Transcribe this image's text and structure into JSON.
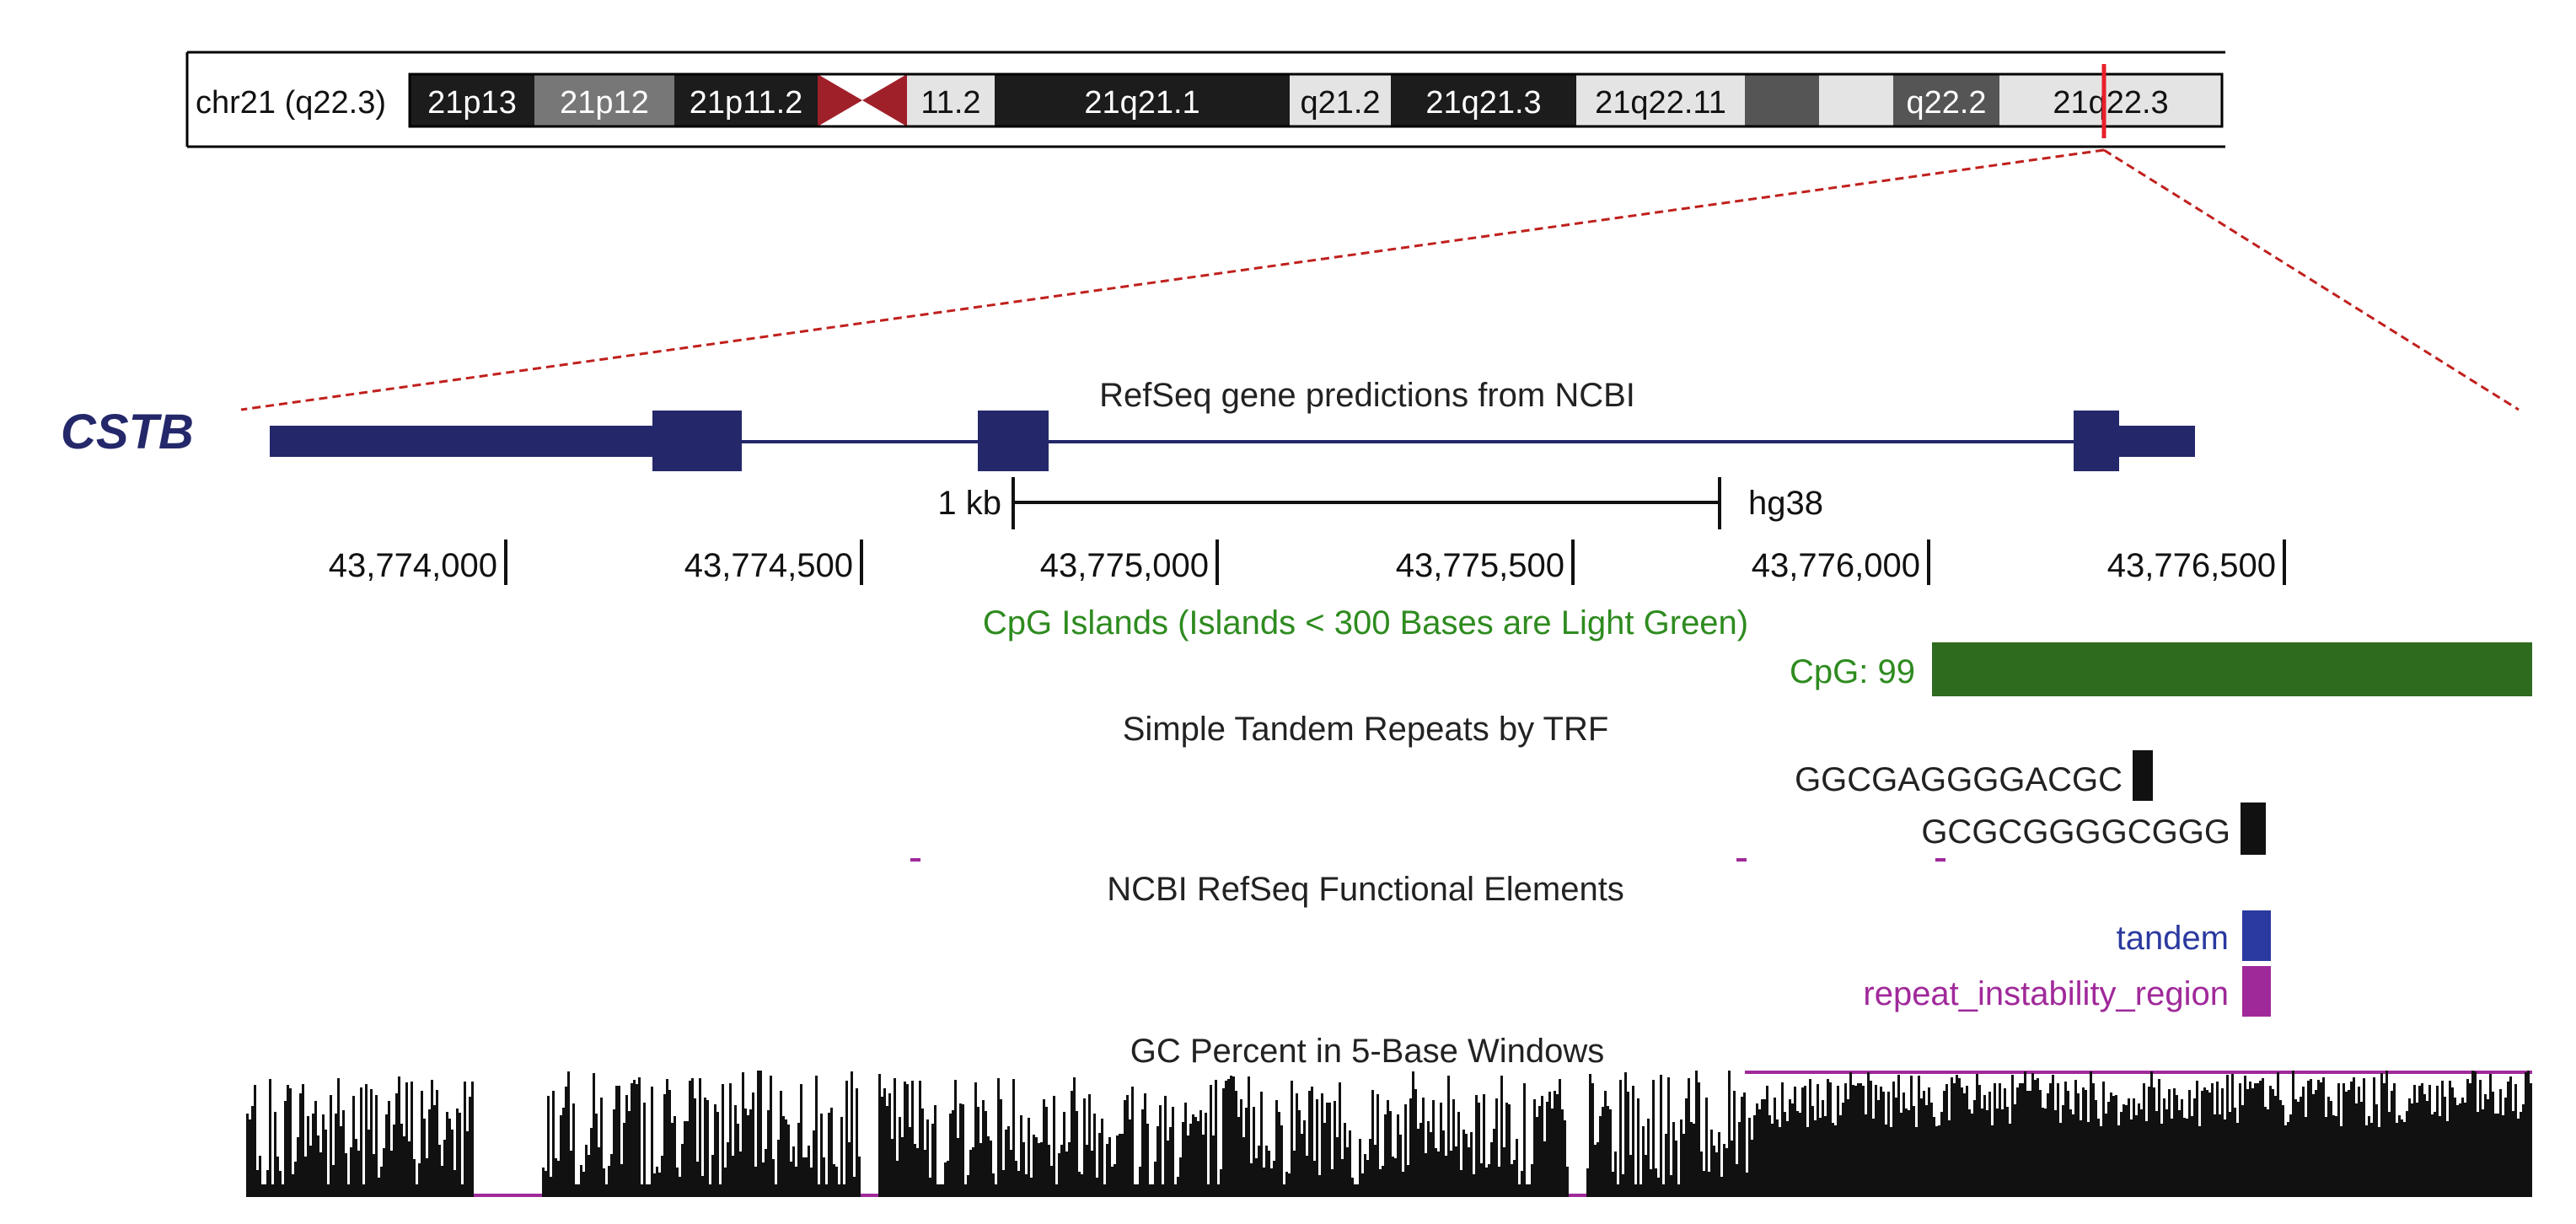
{
  "ideogram": {
    "chrom_label": "chr21 (q22.3)",
    "bands": [
      {
        "label": "21p13",
        "stain": "gpos100"
      },
      {
        "label": "21p12",
        "stain": "gpos50"
      },
      {
        "label": "21p11.2",
        "stain": "gpos100"
      },
      {
        "label": "",
        "stain": "acen"
      },
      {
        "label": "11.2",
        "stain": "gneg"
      },
      {
        "label": "21q21.1",
        "stain": "gpos100"
      },
      {
        "label": "q21.2",
        "stain": "gneg"
      },
      {
        "label": "21q21.3",
        "stain": "gpos100"
      },
      {
        "label": "21q22.11",
        "stain": "gneg"
      },
      {
        "label": "",
        "stain": "gpos75"
      },
      {
        "label": "",
        "stain": "gneg"
      },
      {
        "label": "q22.2",
        "stain": "gpos75"
      },
      {
        "label": "21q22.3",
        "stain": "gneg"
      }
    ]
  },
  "gene": {
    "name": "CSTB",
    "track_title": "RefSeq gene predictions from NCBI",
    "color": "#24286a"
  },
  "scale": {
    "bar_label": "1 kb",
    "assembly": "hg38",
    "ticks": [
      "43,774,000",
      "43,774,500",
      "43,775,000",
      "43,775,500",
      "43,776,000",
      "43,776,500"
    ]
  },
  "cpg": {
    "track_title": "CpG Islands (Islands < 300 Bases are Light Green)",
    "feature_label": "CpG: 99",
    "color": "#2e6b1f",
    "title_color": "#2e8b1f"
  },
  "trf": {
    "track_title": "Simple Tandem Repeats by TRF",
    "repeats": [
      "GGCGAGGGGACGC",
      "GCGCGGGGCGGG"
    ]
  },
  "func": {
    "track_title": "NCBI RefSeq Functional Elements",
    "features": [
      {
        "label": "tandem",
        "color": "#2b3aa0"
      },
      {
        "label": "repeat_instability_region",
        "color": "#a0299a"
      }
    ]
  },
  "gc": {
    "track_title": "GC Percent in 5-Base Windows"
  },
  "colors": {
    "zoom_lines": "#c0201d",
    "centromere": "#a0202a",
    "gc_bars": "#111111",
    "gc_baseline": "#a0299a"
  }
}
